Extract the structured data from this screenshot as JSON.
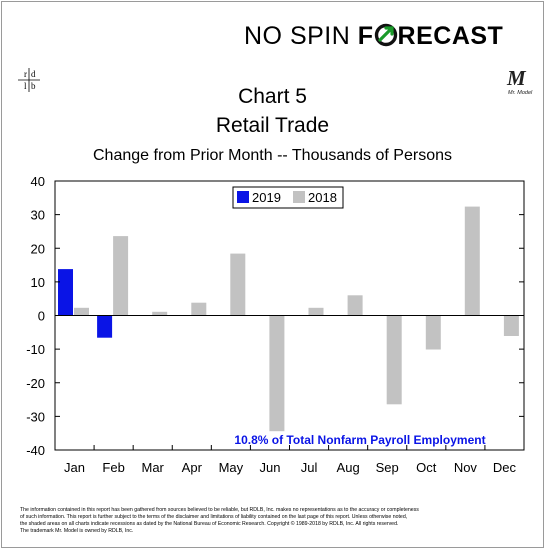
{
  "header": {
    "logo_part1": "NO SPIN ",
    "logo_part2": "F",
    "logo_part3": "RECAST",
    "rdlb_logo": "r d l b",
    "mrmodel_logo": "M",
    "mrmodel_caption": "Mr. Model"
  },
  "colors": {
    "series_2019": "#0a14e6",
    "series_2018": "#c2c2c2",
    "annotation": "#0a14e6",
    "logo_arrow": "#1a9a2a"
  },
  "chart_data": {
    "type": "bar",
    "title": "Chart 5",
    "subtitle": "Retail Trade",
    "ylabel": "Change from Prior Month -- Thousands of Persons",
    "categories": [
      "Jan",
      "Feb",
      "Mar",
      "Apr",
      "May",
      "Jun",
      "Jul",
      "Aug",
      "Sep",
      "Oct",
      "Nov",
      "Dec"
    ],
    "series": [
      {
        "name": "2019",
        "values": [
          13.8,
          -6.6,
          null,
          null,
          null,
          null,
          null,
          null,
          null,
          null,
          null,
          null
        ]
      },
      {
        "name": "2018",
        "values": [
          2.3,
          23.6,
          1.1,
          3.8,
          18.4,
          -34.4,
          2.3,
          6.0,
          -26.4,
          -10.1,
          32.4,
          -6.1
        ]
      }
    ],
    "ylim": [
      -40,
      40
    ],
    "yticks": [
      -40,
      -30,
      -20,
      -10,
      0,
      10,
      20,
      30,
      40
    ],
    "ytick_labels": [
      "-40",
      "-30",
      "-20",
      "-10",
      "0",
      "10",
      "20",
      "30",
      "40"
    ],
    "grid": false,
    "legend_position": "top-left",
    "annotation": "10.8% of Total Nonfarm Payroll Employment"
  },
  "footer": {
    "line1": "The information contained in this report has been gathered from sources believed to be reliable, but RDLB, Inc. makes no representations as to the accuracy or completeness",
    "line2": "of such information. This report is further subject to the terms of the disclaimer and limitations of liability contained on the last page of this report. Unless otherwise noted,",
    "line3": "the shaded areas on all charts indicate recessions as dated by the National Bureau of Economic Research. Copyright © 1989-2018 by RDLB, Inc. All rights reserved.",
    "line4": "The trademark Mr. Model is owned by RDLB, Inc."
  }
}
